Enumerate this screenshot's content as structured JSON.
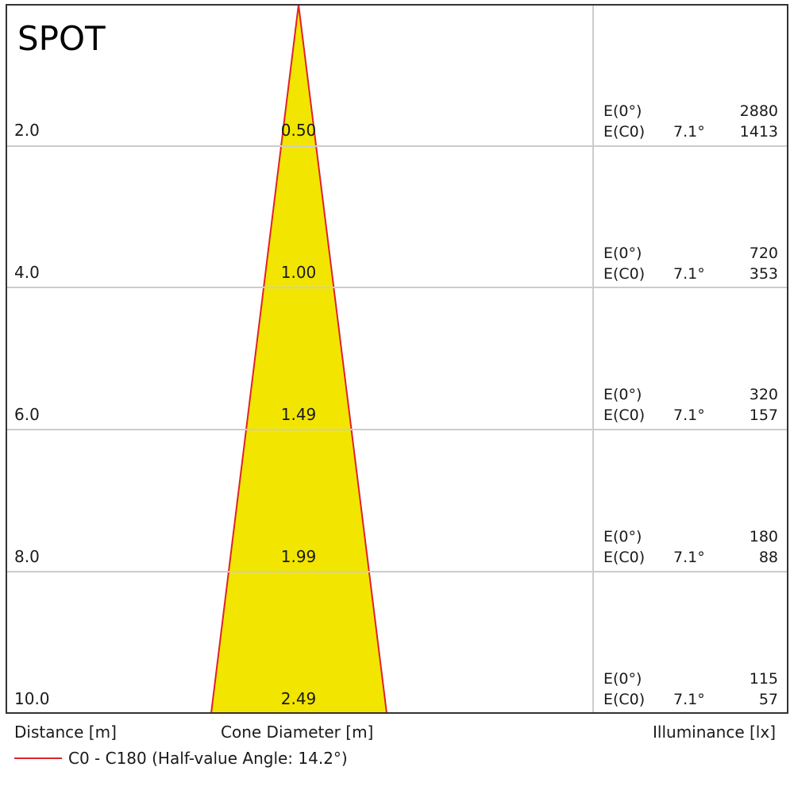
{
  "title": "SPOT",
  "rows": [
    {
      "distance": "2.0",
      "diameter": "0.50",
      "e0_label": "E(0°)",
      "e0_value": "2880",
      "ec0_label": "E(C0)",
      "ec0_angle": "7.1°",
      "ec0_value": "1413"
    },
    {
      "distance": "4.0",
      "diameter": "1.00",
      "e0_label": "E(0°)",
      "e0_value": "720",
      "ec0_label": "E(C0)",
      "ec0_angle": "7.1°",
      "ec0_value": "353"
    },
    {
      "distance": "6.0",
      "diameter": "1.49",
      "e0_label": "E(0°)",
      "e0_value": "320",
      "ec0_label": "E(C0)",
      "ec0_angle": "7.1°",
      "ec0_value": "157"
    },
    {
      "distance": "8.0",
      "diameter": "1.99",
      "e0_label": "E(0°)",
      "e0_value": "180",
      "ec0_label": "E(C0)",
      "ec0_angle": "7.1°",
      "ec0_value": "88"
    },
    {
      "distance": "10.0",
      "diameter": "2.49",
      "e0_label": "E(0°)",
      "e0_value": "115",
      "ec0_label": "E(C0)",
      "ec0_angle": "7.1°",
      "ec0_value": "57"
    }
  ],
  "footer": {
    "distance_label": "Distance [m]",
    "diameter_label": "Cone Diameter [m]",
    "illuminance_label": "Illuminance [lx]"
  },
  "legend": {
    "text": "C0 - C180 (Half-value Angle: 14.2°)",
    "line_color": "#e0222b"
  },
  "colors": {
    "cone_fill": "#f2e600",
    "cone_edge": "#e0222b",
    "grid": "#cccccc",
    "frame": "#333333"
  }
}
